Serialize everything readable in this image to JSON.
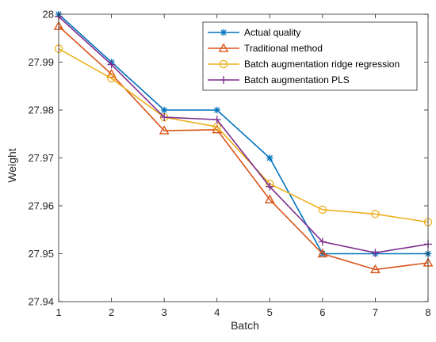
{
  "chart_data": {
    "type": "line",
    "xlabel": "Batch",
    "ylabel": "Weight",
    "x": [
      1,
      2,
      3,
      4,
      5,
      6,
      7,
      8
    ],
    "xlim": [
      1,
      8
    ],
    "ylim": [
      27.94,
      28
    ],
    "xticks": [
      "1",
      "2",
      "3",
      "4",
      "5",
      "6",
      "7",
      "8"
    ],
    "yticks": [
      "27.94",
      "27.95",
      "27.96",
      "27.97",
      "27.98",
      "27.99",
      "28"
    ],
    "grid": false,
    "legend_position": "top-right",
    "series": [
      {
        "name": "Actual quality",
        "marker": "asterisk",
        "color": "#0072BD",
        "values": [
          28.0,
          27.99,
          27.98,
          27.98,
          27.97,
          27.95,
          27.95,
          27.95
        ]
      },
      {
        "name": "Traditional method",
        "marker": "triangle",
        "color": "#D95319",
        "values": [
          27.9975,
          27.9875,
          27.9757,
          27.9759,
          27.9613,
          27.95,
          27.9467,
          27.9481
        ]
      },
      {
        "name": "Batch augmentation ridge regression",
        "marker": "circle",
        "color": "#EDB120",
        "values": [
          27.9928,
          27.9866,
          27.9785,
          27.9765,
          27.9646,
          27.9592,
          27.9583,
          27.9566
        ]
      },
      {
        "name": "Batch augmentation PLS",
        "marker": "plus",
        "color": "#7E2F8E",
        "values": [
          27.9995,
          27.9895,
          27.9785,
          27.978,
          27.964,
          27.9525,
          27.9502,
          27.952
        ]
      }
    ]
  }
}
